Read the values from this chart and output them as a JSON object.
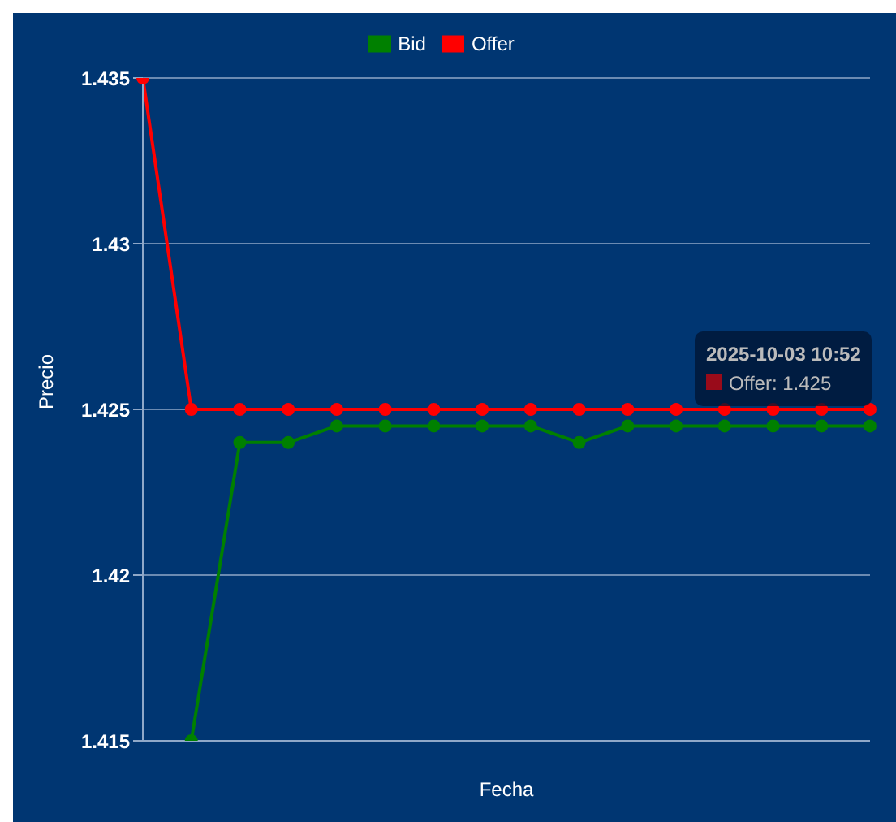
{
  "chart_data": {
    "type": "line",
    "xlabel": "Fecha",
    "ylabel": "Precio",
    "categories": [
      null,
      null,
      null,
      null,
      null,
      null,
      null,
      null,
      null,
      null,
      null,
      null,
      null,
      null,
      null,
      null
    ],
    "series": [
      {
        "name": "Bid",
        "color": "#008000",
        "values": [
          null,
          1.415,
          1.424,
          1.424,
          1.4245,
          1.4245,
          1.4245,
          1.4245,
          1.4245,
          1.424,
          1.4245,
          1.4245,
          1.4245,
          1.4245,
          1.4245,
          1.4245
        ]
      },
      {
        "name": "Offer",
        "color": "#ff0000",
        "values": [
          1.435,
          1.425,
          1.425,
          1.425,
          1.425,
          1.425,
          1.425,
          1.425,
          1.425,
          1.425,
          1.425,
          1.425,
          1.425,
          1.425,
          1.425,
          1.425
        ]
      }
    ],
    "ylim": [
      1.415,
      1.435
    ],
    "yticks": [
      1.415,
      1.42,
      1.425,
      1.43,
      1.435
    ],
    "grid": "y",
    "legend": "top",
    "marker": "circle",
    "line_style": "solid",
    "annotations": [
      "2025-10-03 10:52\nOffer: 1.425"
    ]
  }
}
